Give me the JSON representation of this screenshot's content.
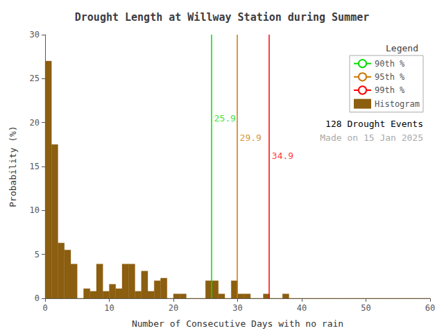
{
  "chart_data": {
    "type": "histogram",
    "title": "Drought Length at Willway Station during Summer",
    "xlabel": "Number of Consecutive Days with no rain",
    "ylabel": "Probability (%)",
    "xlim": [
      0,
      60
    ],
    "ylim": [
      0,
      30
    ],
    "xticks": [
      0,
      10,
      20,
      30,
      40,
      50,
      60
    ],
    "yticks": [
      0,
      5,
      10,
      15,
      20,
      25,
      30
    ],
    "grid": false,
    "legend": "upper right",
    "legend_title": "Legend",
    "bins": [
      0,
      1,
      2,
      3,
      4,
      5,
      6,
      7,
      8,
      9,
      10,
      11,
      12,
      13,
      14,
      15,
      16,
      17,
      18,
      19,
      20,
      21,
      22,
      23,
      24,
      25,
      26,
      27,
      28,
      29,
      30,
      31,
      32,
      33,
      34,
      35,
      36,
      37,
      38,
      39,
      40,
      41,
      42,
      43,
      44,
      45,
      46,
      47,
      48,
      49,
      50,
      51,
      52,
      53,
      54,
      55,
      56,
      57,
      58,
      59,
      60
    ],
    "series": [
      {
        "name": "90th %",
        "type": "vline",
        "x": 25.9,
        "color": "#00dd00"
      },
      {
        "name": "95th %",
        "type": "vline",
        "x": 29.9,
        "color": "#cc7700"
      },
      {
        "name": "99th %",
        "type": "vline",
        "x": 34.9,
        "color": "#ff0000"
      },
      {
        "name": "Histogram",
        "type": "bar",
        "color": "#8B5E10",
        "values": [
          27.0,
          17.5,
          6.3,
          5.5,
          3.9,
          0.0,
          1.1,
          0.8,
          3.9,
          0.8,
          1.6,
          1.1,
          3.9,
          3.9,
          0.8,
          3.1,
          0.8,
          2.0,
          2.3,
          0.0,
          0.5,
          0.5,
          0.0,
          0.0,
          0.0,
          2.0,
          2.0,
          0.5,
          0.0,
          2.0,
          0.5,
          0.5,
          0.0,
          0.0,
          0.5,
          0.0,
          0.0,
          0.5,
          0.0,
          0.0,
          0.0,
          0.0,
          0.0,
          0.0,
          0.0,
          0.0,
          0.0,
          0.0,
          0.0,
          0.0,
          0.0,
          0.0,
          0.0,
          0.0,
          0.0,
          0.0,
          0.0,
          0.0,
          0.0,
          0.0
        ]
      }
    ],
    "annotations": [
      {
        "text": "25.9",
        "x": 25.9,
        "y": 20.5,
        "color": "#00dd00"
      },
      {
        "text": "29.9",
        "x": 29.9,
        "y": 18.3,
        "color": "#cc7700"
      },
      {
        "text": "34.9",
        "x": 34.9,
        "y": 16.2,
        "color": "#ff0000"
      },
      {
        "text": "128 Drought Events",
        "color": "#000000"
      },
      {
        "text": "Made on 15 Jan 2025",
        "color": "#aaaaaa"
      }
    ]
  }
}
